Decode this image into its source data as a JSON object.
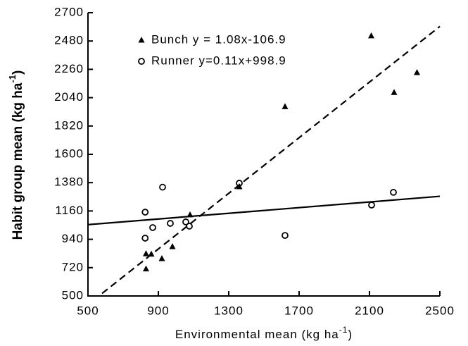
{
  "chart_data": {
    "type": "scatter",
    "xlabel": {
      "text": "Environmental mean (kg ha",
      "sup": "-1",
      "end": ")"
    },
    "ylabel": {
      "text": "Habit group mean (kg ha",
      "sup": "-1",
      "end": ")"
    },
    "xlim": [
      500,
      2500
    ],
    "xticks": [
      500,
      900,
      1300,
      1700,
      2100,
      2500
    ],
    "ylim": [
      500,
      2700
    ],
    "yticks": [
      500,
      720,
      940,
      1160,
      1380,
      1600,
      1820,
      2040,
      2260,
      2480,
      2700
    ],
    "series": [
      {
        "name": "Bunch y = 1.08x-106.9",
        "marker": "triangle",
        "color": "#000000",
        "line_style": "dashed",
        "x": [
          830,
          830,
          860,
          920,
          980,
          1080,
          1360,
          1620,
          2110,
          2240,
          2370
        ],
        "values": [
          710,
          828,
          825,
          790,
          883,
          1130,
          1348,
          1970,
          2520,
          2080,
          2235
        ],
        "fit_x": [
          580,
          2500
        ],
        "fit_y": [
          519.5,
          2593.1
        ]
      },
      {
        "name": "Runner y=0.11x+998.9",
        "marker": "circle",
        "color": "#000000",
        "line_style": "solid",
        "x": [
          825,
          825,
          868,
          924,
          968,
          1056,
          1076,
          1360,
          1620,
          2112,
          2236
        ],
        "values": [
          1151,
          949,
          1031,
          1345,
          1064,
          1075,
          1042,
          1376,
          970,
          1206,
          1305
        ],
        "fit_x": [
          500,
          2500
        ],
        "fit_y": [
          1053.9,
          1273.9
        ]
      }
    ]
  }
}
